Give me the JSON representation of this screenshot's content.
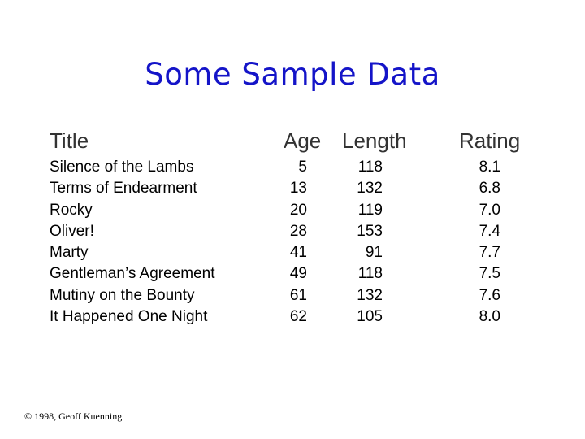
{
  "slide": {
    "title": "Some Sample Data",
    "footer": "© 1998, Geoff Kuenning"
  },
  "table": {
    "headers": {
      "title": "Title",
      "age": "Age",
      "length": "Length",
      "rating": "Rating"
    },
    "rows": [
      {
        "title": "Silence of the Lambs",
        "age": "5",
        "length": "118",
        "rating": "8.1"
      },
      {
        "title": "Terms of Endearment",
        "age": "13",
        "length": "132",
        "rating": "6.8"
      },
      {
        "title": "Rocky",
        "age": "20",
        "length": "119",
        "rating": "7.0"
      },
      {
        "title": "Oliver!",
        "age": "28",
        "length": "153",
        "rating": "7.4"
      },
      {
        "title": "Marty",
        "age": "41",
        "length": "91",
        "rating": "7.7"
      },
      {
        "title": "Gentleman’s Agreement",
        "age": "49",
        "length": "118",
        "rating": "7.5"
      },
      {
        "title": "Mutiny on the Bounty",
        "age": "61",
        "length": "132",
        "rating": "7.6"
      },
      {
        "title": "It Happened One Night",
        "age": "62",
        "length": "105",
        "rating": "8.0"
      }
    ]
  }
}
